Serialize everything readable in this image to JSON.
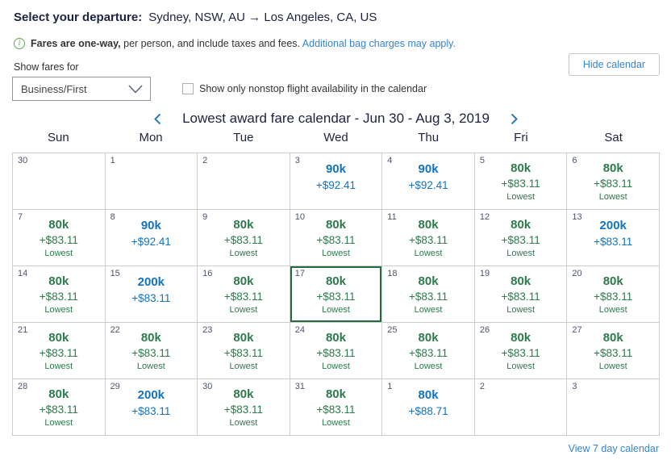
{
  "header": {
    "label": "Select your departure:",
    "route": "Sydney, NSW, AU → Los Angeles, CA, US"
  },
  "notice": {
    "bold": "Fares are one-way,",
    "rest": " per person, and include taxes and fees. ",
    "link": "Additional bag charges may apply."
  },
  "controls": {
    "show_fares_label": "Show fares for",
    "cabin_value": "Business/First",
    "nonstop_label": "Show only nonstop flight availability in the calendar",
    "nonstop_checked": false,
    "hide_calendar_label": "Hide calendar"
  },
  "calendar": {
    "title": "Lowest award fare calendar - Jun 30 - Aug 3, 2019",
    "day_headers": [
      "Sun",
      "Mon",
      "Tue",
      "Wed",
      "Thu",
      "Fri",
      "Sat"
    ],
    "footer_link": "View 7 day calendar",
    "cells": [
      {
        "date": "30",
        "type": "empty"
      },
      {
        "date": "1",
        "type": "empty"
      },
      {
        "date": "2",
        "type": "empty"
      },
      {
        "date": "3",
        "miles": "90k",
        "fees": "+$92.41",
        "type": "standard"
      },
      {
        "date": "4",
        "miles": "90k",
        "fees": "+$92.41",
        "type": "standard"
      },
      {
        "date": "5",
        "miles": "80k",
        "fees": "+$83.11",
        "label": "Lowest",
        "type": "lowest"
      },
      {
        "date": "6",
        "miles": "80k",
        "fees": "+$83.11",
        "label": "Lowest",
        "type": "lowest"
      },
      {
        "date": "7",
        "miles": "80k",
        "fees": "+$83.11",
        "label": "Lowest",
        "type": "lowest"
      },
      {
        "date": "8",
        "miles": "90k",
        "fees": "+$92.41",
        "type": "standard"
      },
      {
        "date": "9",
        "miles": "80k",
        "fees": "+$83.11",
        "label": "Lowest",
        "type": "lowest"
      },
      {
        "date": "10",
        "miles": "80k",
        "fees": "+$83.11",
        "label": "Lowest",
        "type": "lowest"
      },
      {
        "date": "11",
        "miles": "80k",
        "fees": "+$83.11",
        "label": "Lowest",
        "type": "lowest"
      },
      {
        "date": "12",
        "miles": "80k",
        "fees": "+$83.11",
        "label": "Lowest",
        "type": "lowest"
      },
      {
        "date": "13",
        "miles": "200k",
        "fees": "+$83.11",
        "type": "standard"
      },
      {
        "date": "14",
        "miles": "80k",
        "fees": "+$83.11",
        "label": "Lowest",
        "type": "lowest"
      },
      {
        "date": "15",
        "miles": "200k",
        "fees": "+$83.11",
        "type": "standard"
      },
      {
        "date": "16",
        "miles": "80k",
        "fees": "+$83.11",
        "label": "Lowest",
        "type": "lowest"
      },
      {
        "date": "17",
        "miles": "80k",
        "fees": "+$83.11",
        "label": "Lowest",
        "type": "lowest",
        "selected": true
      },
      {
        "date": "18",
        "miles": "80k",
        "fees": "+$83.11",
        "label": "Lowest",
        "type": "lowest"
      },
      {
        "date": "19",
        "miles": "80k",
        "fees": "+$83.11",
        "label": "Lowest",
        "type": "lowest"
      },
      {
        "date": "20",
        "miles": "80k",
        "fees": "+$83.11",
        "label": "Lowest",
        "type": "lowest"
      },
      {
        "date": "21",
        "miles": "80k",
        "fees": "+$83.11",
        "label": "Lowest",
        "type": "lowest"
      },
      {
        "date": "22",
        "miles": "80k",
        "fees": "+$83.11",
        "label": "Lowest",
        "type": "lowest"
      },
      {
        "date": "23",
        "miles": "80k",
        "fees": "+$83.11",
        "label": "Lowest",
        "type": "lowest"
      },
      {
        "date": "24",
        "miles": "80k",
        "fees": "+$83.11",
        "label": "Lowest",
        "type": "lowest"
      },
      {
        "date": "25",
        "miles": "80k",
        "fees": "+$83.11",
        "label": "Lowest",
        "type": "lowest"
      },
      {
        "date": "26",
        "miles": "80k",
        "fees": "+$83.11",
        "label": "Lowest",
        "type": "lowest"
      },
      {
        "date": "27",
        "miles": "80k",
        "fees": "+$83.11",
        "label": "Lowest",
        "type": "lowest"
      },
      {
        "date": "28",
        "miles": "80k",
        "fees": "+$83.11",
        "label": "Lowest",
        "type": "lowest"
      },
      {
        "date": "29",
        "miles": "200k",
        "fees": "+$83.11",
        "type": "standard"
      },
      {
        "date": "30",
        "miles": "80k",
        "fees": "+$83.11",
        "label": "Lowest",
        "type": "lowest"
      },
      {
        "date": "31",
        "miles": "80k",
        "fees": "+$83.11",
        "label": "Lowest",
        "type": "lowest"
      },
      {
        "date": "1",
        "miles": "80k",
        "fees": "+$88.71",
        "type": "standard"
      },
      {
        "date": "2",
        "type": "empty"
      },
      {
        "date": "3",
        "type": "empty"
      }
    ]
  },
  "colors": {
    "fare_green": "#2d7a4b",
    "fare_blue": "#1273bf",
    "link_blue": "#3584cc",
    "selected_border": "#256b3d",
    "notice_green": "#67a356",
    "heading_navy": "#1c2340"
  }
}
